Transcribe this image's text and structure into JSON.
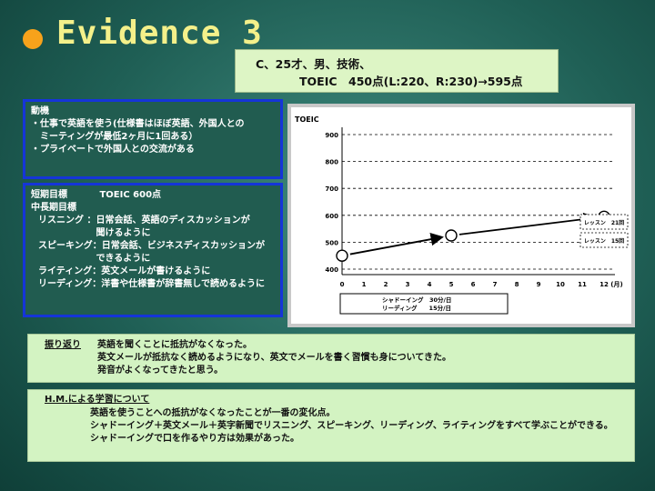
{
  "slide": {
    "title": "Evidence 3",
    "profile_line1": "C、25才、男、技術、",
    "profile_line2": "TOEIC　450点(L:220、R:230)→595点"
  },
  "motive": {
    "heading": "動機",
    "lines": [
      "・仕事で英語を使う(仕様書はほぼ英語、外国人との",
      "　ミーティングが最低2ヶ月に1回ある）",
      "・プライベートで外国人との交流がある"
    ]
  },
  "goals": {
    "short_label": "短期目標",
    "short_value": "TOEIC 600点",
    "mid_label": "中長期目標",
    "items": [
      "リスニング ：日常会話、英語のディスカッションが",
      "　　　　　　  聞けるように",
      "スピーキング：日常会話、ビジネスディスカッションが",
      "　　　　　　  できるように",
      "ライティング：英文メールが書けるように",
      "リーディング：洋書や仕様書が辞書無しで読めるように"
    ]
  },
  "chart_data": {
    "type": "line",
    "ylabel": "TOEIC",
    "xlabel": "(月)",
    "ylim": [
      400,
      900
    ],
    "xlim": [
      0,
      12
    ],
    "yticks": [
      400,
      500,
      600,
      700,
      800,
      900
    ],
    "xticks": [
      0,
      1,
      2,
      3,
      4,
      5,
      6,
      7,
      8,
      9,
      10,
      11,
      12
    ],
    "grid": "horizontal-dashed",
    "points": [
      {
        "x": 0,
        "y": 450
      },
      {
        "x": 5,
        "y": 525
      },
      {
        "x": 12,
        "y": 595
      }
    ],
    "callouts": [
      "レッスン　21回",
      "レッスン　15回"
    ],
    "activity_labels": [
      "シャドーイング　30分/日",
      "リーディング　　15分/日"
    ]
  },
  "reflection": {
    "label": "振り返り",
    "lines": [
      "英語を聞くことに抵抗がなくなった。",
      "英文メールが抵抗なく読めるようになり、英文でメールを書く習慣も身についてきた。",
      "発音がよくなってきたと思う。"
    ]
  },
  "hm": {
    "label": "H.M.による学習について",
    "lines": [
      "英語を使うことへの抵抗がなくなったことが一番の変化点。",
      "シャドーイング＋英文メール＋英字新聞でリスニング、スピーキング、リーディング、ライティングをすべて学ぶことができる。",
      "シャドーイングで口を作るやり方は効果があった。"
    ]
  },
  "colors": {
    "accent_dot": "#f7a21b",
    "title": "#f4f08a",
    "box_border": "#1535d8"
  }
}
